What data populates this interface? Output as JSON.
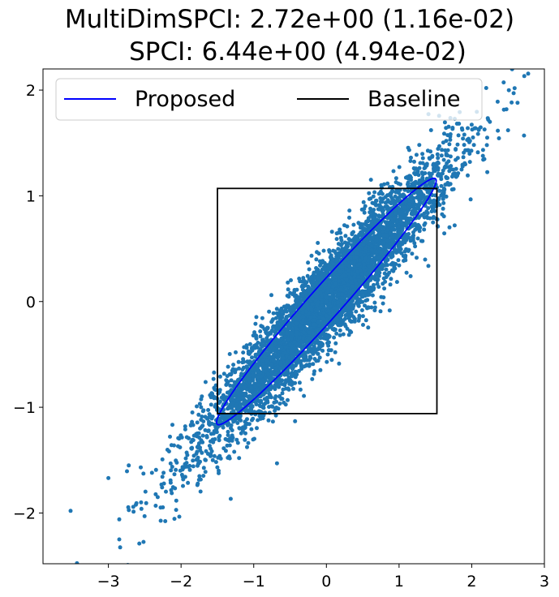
{
  "chart_data": {
    "type": "scatter",
    "title": [
      "MultiDimSPCI: 2.72e+00 (1.16e-02)",
      "SPCI: 6.44e+00 (4.94e-02)"
    ],
    "xlabel": "",
    "ylabel": "",
    "xlim": [
      -3.9,
      3.0
    ],
    "ylim": [
      -2.48,
      2.2
    ],
    "xticks": [
      -3,
      -2,
      -1,
      0,
      1,
      2,
      3
    ],
    "yticks": [
      -2,
      -1,
      0,
      1,
      2
    ],
    "xtick_labels": [
      "−3",
      "−2",
      "−1",
      "0",
      "1",
      "2",
      "3"
    ],
    "ytick_labels": [
      "−2",
      "−1",
      "0",
      "1",
      "2"
    ],
    "grid": false,
    "legend": {
      "placement": "upper-left",
      "entries": [
        {
          "label": "Proposed",
          "color": "#0000ff"
        },
        {
          "label": "Baseline",
          "color": "#000000"
        }
      ]
    },
    "scatter": {
      "color": "#1f77b4",
      "distribution": {
        "mean": [
          0.0,
          0.0
        ],
        "x_std": 0.85,
        "correlation": 0.95,
        "y_over_x_slope": 0.75,
        "count": 5000
      },
      "outlier_points": [
        [
          -3.52,
          -1.98
        ],
        [
          -2.85,
          -2.25
        ],
        [
          -2.85,
          -2.06
        ],
        [
          -3.0,
          -1.67
        ],
        [
          -2.72,
          -1.55
        ],
        [
          -2.55,
          -1.9
        ],
        [
          -2.4,
          -1.62
        ],
        [
          2.2,
          2.02
        ],
        [
          2.63,
          1.88
        ],
        [
          2.5,
          1.62
        ],
        [
          2.72,
          1.57
        ],
        [
          2.25,
          1.7
        ],
        [
          -0.68,
          -1.53
        ],
        [
          0.0,
          0.0
        ]
      ]
    },
    "series": [
      {
        "name": "Proposed",
        "shape": "ellipse",
        "color": "#0000ff",
        "center": [
          0.0,
          0.0
        ],
        "angle_deg": 37.5,
        "semi_major": 1.9,
        "semi_minor": 0.18
      },
      {
        "name": "Baseline",
        "shape": "rectangle",
        "color": "#000000",
        "x_range": [
          -1.5,
          1.52
        ],
        "y_range": [
          -1.06,
          1.07
        ]
      }
    ]
  }
}
